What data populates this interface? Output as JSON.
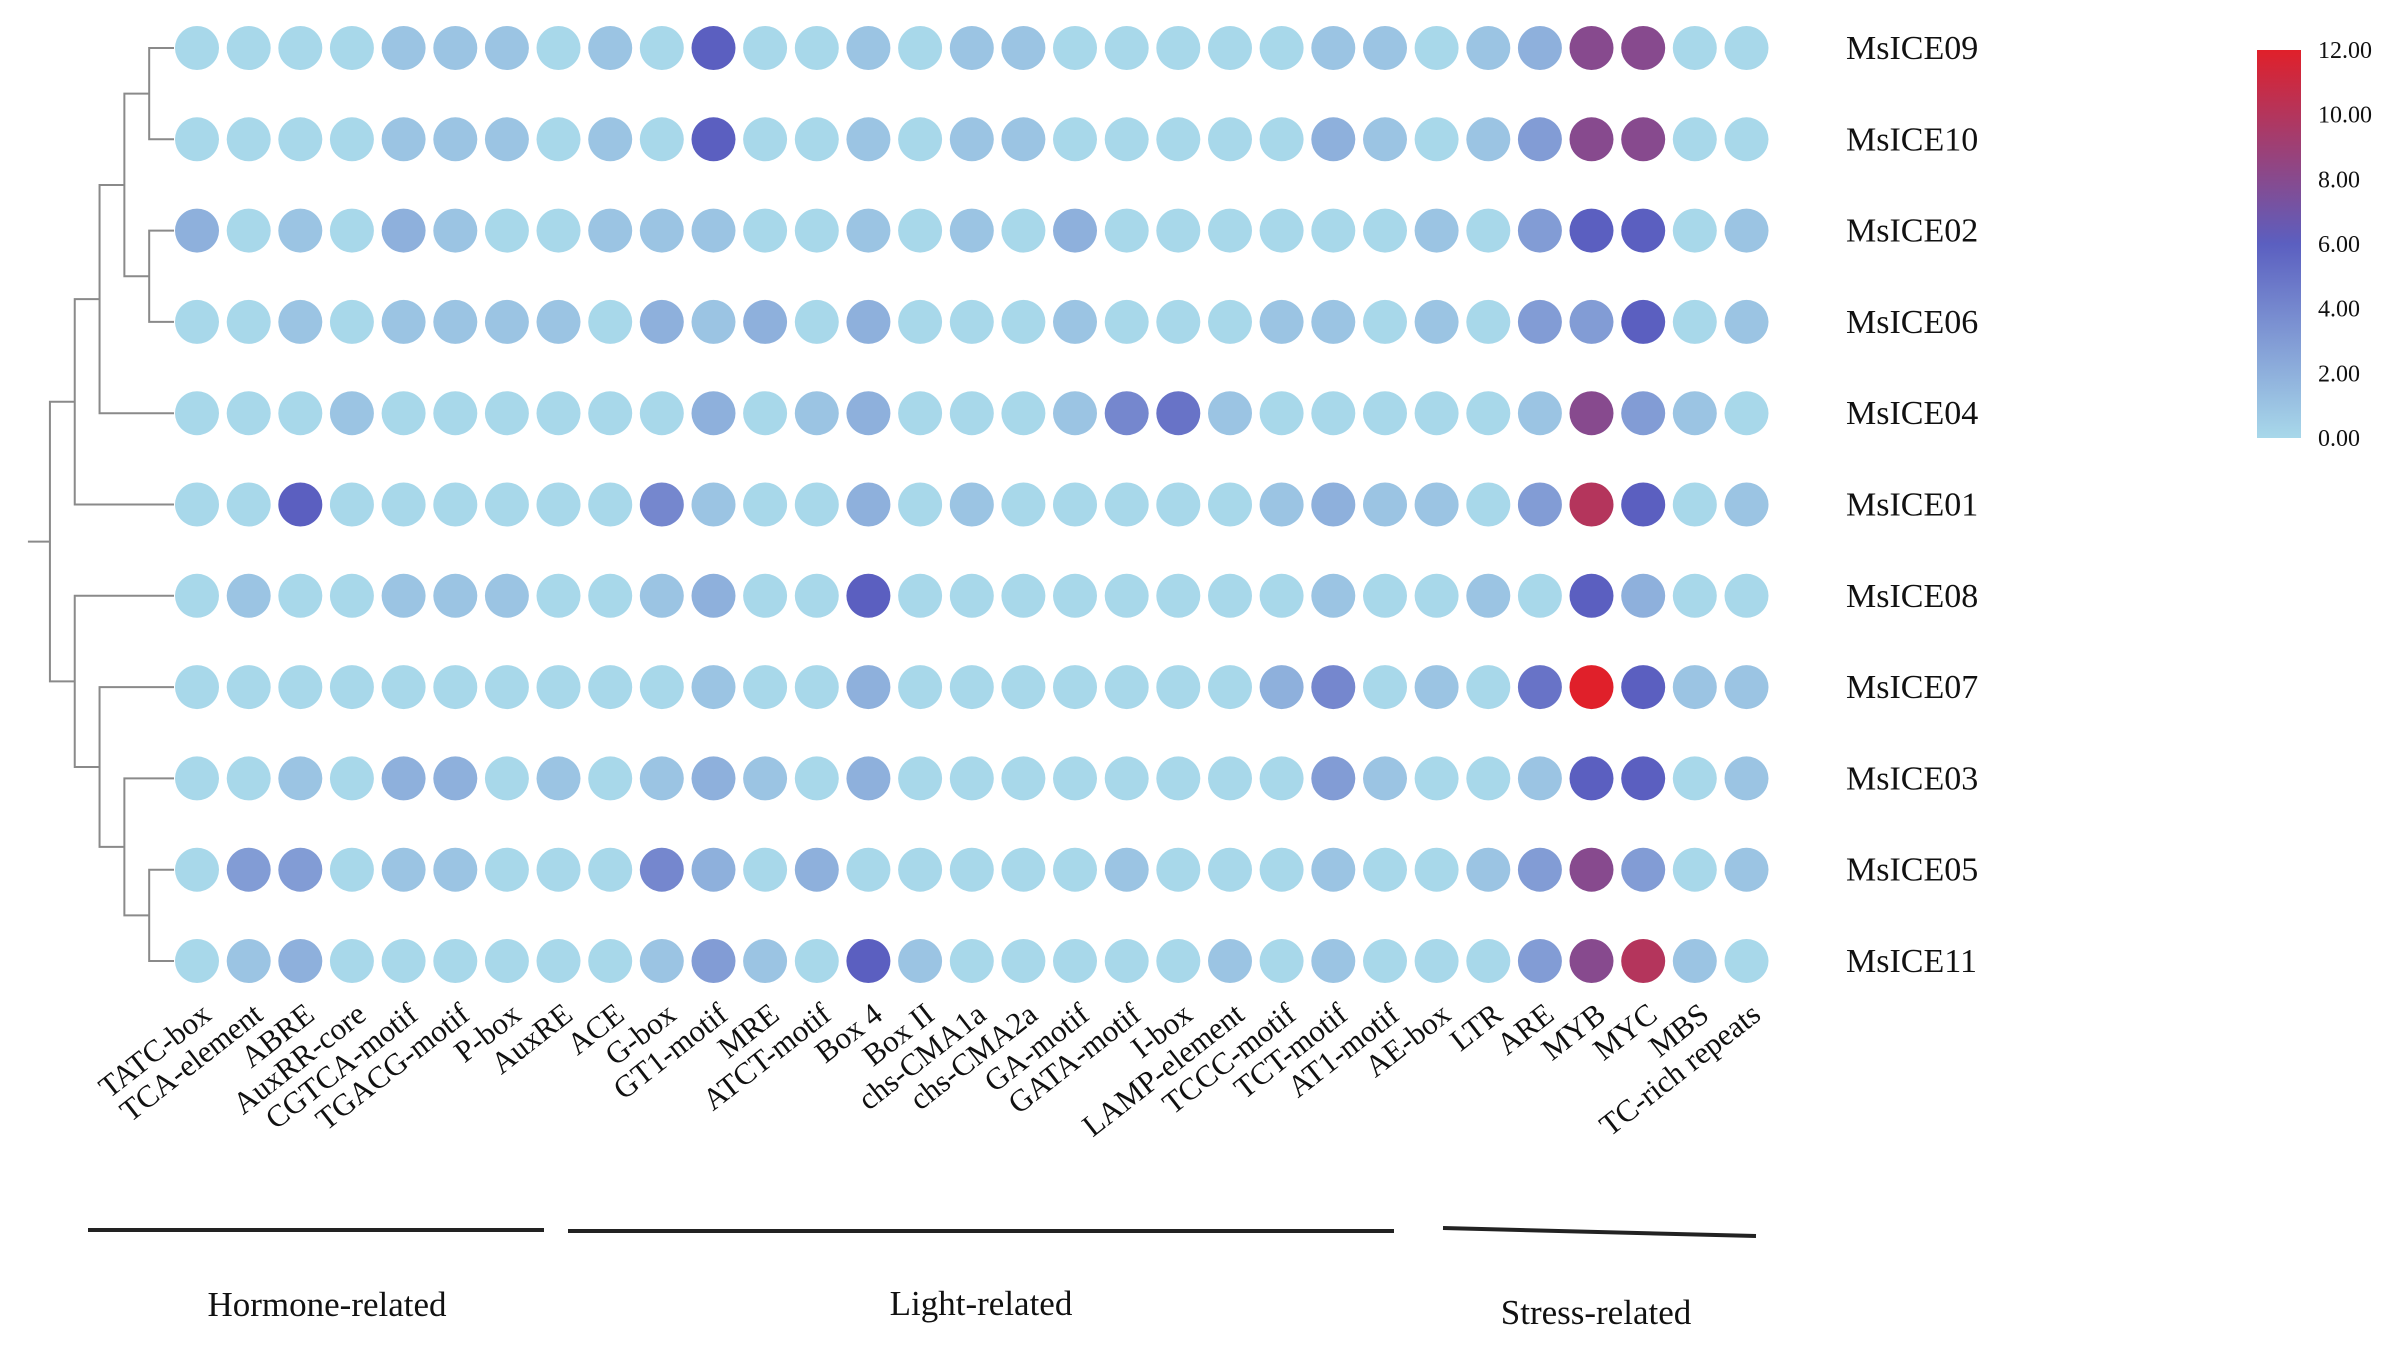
{
  "chart_data": {
    "type": "heatmap",
    "title": "",
    "xlabel": "",
    "ylabel": "",
    "value_range": [
      0,
      12
    ],
    "colorscale": [
      {
        "value": 0,
        "color": "#a8d8ea"
      },
      {
        "value": 6,
        "color": "#5b5fc0"
      },
      {
        "value": 12,
        "color": "#e0202a"
      }
    ],
    "legend_ticks": [
      "12.00",
      "10.00",
      "8.00",
      "6.00",
      "4.00",
      "2.00",
      "0.00"
    ],
    "legend_position": "top-right",
    "rows": [
      "MsICE09",
      "MsICE10",
      "MsICE02",
      "MsICE06",
      "MsICE04",
      "MsICE01",
      "MsICE08",
      "MsICE07",
      "MsICE03",
      "MsICE05",
      "MsICE11"
    ],
    "columns": [
      "TATC-box",
      "TCA-element",
      "ABRE",
      "AuxRR-core",
      "CGTCA-motif",
      "TGACG-motif",
      "P-box",
      "AuxRE",
      "ACE",
      "G-box",
      "GT1-motif",
      "MRE",
      "ATCT-motif",
      "Box 4",
      "Box II",
      "chs-CMA1a",
      "chs-CMA2a",
      "GA-motif",
      "GATA-motif",
      "I-box",
      "LAMP-element",
      "TCCC-motif",
      "TCT-motif",
      "AT1-motif",
      "AE-box",
      "LTR",
      "ARE",
      "MYB",
      "MYC",
      "MBS",
      "TC-rich repeats"
    ],
    "values": [
      [
        0,
        0,
        0,
        0,
        1,
        1,
        1,
        0,
        1,
        0,
        6,
        0,
        0,
        1,
        0,
        1,
        1,
        0,
        0,
        0,
        0,
        0,
        1,
        1,
        0,
        1,
        2,
        8,
        8,
        0,
        0
      ],
      [
        0,
        0,
        0,
        0,
        1,
        1,
        1,
        0,
        1,
        0,
        6,
        0,
        0,
        1,
        0,
        1,
        1,
        0,
        0,
        0,
        0,
        0,
        2,
        1,
        0,
        1,
        3,
        8,
        8,
        0,
        0
      ],
      [
        2,
        0,
        1,
        0,
        2,
        1,
        0,
        0,
        1,
        1,
        1,
        0,
        0,
        1,
        0,
        1,
        0,
        2,
        0,
        0,
        0,
        0,
        0,
        0,
        1,
        0,
        3,
        6,
        6,
        0,
        1
      ],
      [
        0,
        0,
        1,
        0,
        1,
        1,
        1,
        1,
        0,
        2,
        1,
        2,
        0,
        2,
        0,
        0,
        0,
        1,
        0,
        0,
        0,
        1,
        1,
        0,
        1,
        0,
        3,
        3,
        6,
        0,
        1
      ],
      [
        0,
        0,
        0,
        1,
        0,
        0,
        0,
        0,
        0,
        0,
        2,
        0,
        1,
        2,
        0,
        0,
        0,
        1,
        4,
        5,
        1,
        0,
        0,
        0,
        0,
        0,
        1,
        8,
        3,
        1,
        0
      ],
      [
        0,
        0,
        6,
        0,
        0,
        0,
        0,
        0,
        0,
        4,
        1,
        0,
        0,
        2,
        0,
        1,
        0,
        0,
        0,
        0,
        0,
        1,
        2,
        1,
        1,
        0,
        3,
        10,
        6,
        0,
        1
      ],
      [
        0,
        1,
        0,
        0,
        1,
        1,
        1,
        0,
        0,
        1,
        2,
        0,
        0,
        6,
        0,
        0,
        0,
        0,
        0,
        0,
        0,
        0,
        1,
        0,
        0,
        1,
        0,
        6,
        2,
        0,
        0
      ],
      [
        0,
        0,
        0,
        0,
        0,
        0,
        0,
        0,
        0,
        0,
        1,
        0,
        0,
        2,
        0,
        0,
        0,
        0,
        0,
        0,
        0,
        2,
        4,
        0,
        1,
        0,
        5,
        12,
        6,
        1,
        1
      ],
      [
        0,
        0,
        1,
        0,
        2,
        2,
        0,
        1,
        0,
        1,
        2,
        1,
        0,
        2,
        0,
        0,
        0,
        0,
        0,
        0,
        0,
        0,
        3,
        1,
        0,
        0,
        1,
        6,
        6,
        0,
        1
      ],
      [
        0,
        3,
        3,
        0,
        1,
        1,
        0,
        0,
        0,
        4,
        2,
        0,
        2,
        0,
        0,
        0,
        0,
        0,
        1,
        0,
        0,
        0,
        1,
        0,
        0,
        1,
        3,
        8,
        3,
        0,
        1
      ],
      [
        0,
        1,
        2,
        0,
        0,
        0,
        0,
        0,
        0,
        1,
        3,
        1,
        0,
        6,
        1,
        0,
        0,
        0,
        0,
        0,
        1,
        0,
        1,
        0,
        0,
        0,
        3,
        8,
        10,
        1,
        0
      ]
    ],
    "groups": [
      {
        "name": "Hormone-related",
        "from": "TATC-box",
        "to": "AuxRE"
      },
      {
        "name": "Light-related",
        "from": "ACE",
        "to": "AT1-motif"
      },
      {
        "name": "Stress-related",
        "from": "AE-box",
        "to": "TC-rich repeats"
      }
    ],
    "dendrogram": {
      "tree": [
        [
          [
            [
              [
                "MsICE09",
                "MsICE10"
              ],
              [
                "MsICE02",
                "MsICE06"
              ]
            ],
            "MsICE04"
          ],
          "MsICE01"
        ],
        [
          "MsICE08",
          [
            "MsICE07",
            [
              "MsICE03",
              [
                "MsICE05",
                "MsICE11"
              ]
            ]
          ]
        ]
      ]
    }
  }
}
